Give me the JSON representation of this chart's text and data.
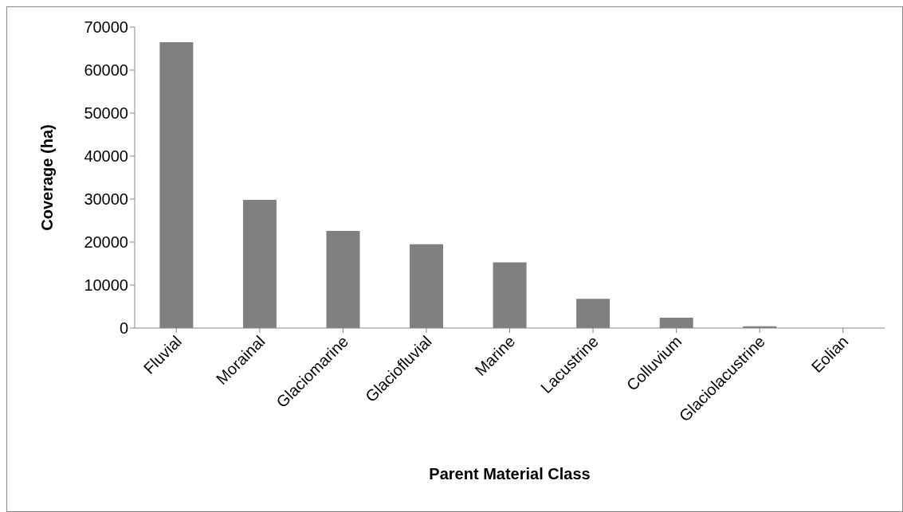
{
  "chart_data": {
    "type": "bar",
    "xlabel": "Parent Material Class",
    "ylabel": "Coverage (ha)",
    "categories": [
      "Fluvial",
      "Morainal",
      "Glaciomarine",
      "Glaciofluvial",
      "Marine",
      "Lacustrine",
      "Colluvium",
      "Glaciolacustrine",
      "Eolian"
    ],
    "values": [
      66500,
      29800,
      22600,
      19500,
      15300,
      6800,
      2400,
      400,
      0
    ],
    "color": "#808080",
    "ylim": [
      0,
      70000
    ],
    "yticks": [
      0,
      10000,
      20000,
      30000,
      40000,
      50000,
      60000,
      70000
    ],
    "grid": false,
    "legend": false
  }
}
